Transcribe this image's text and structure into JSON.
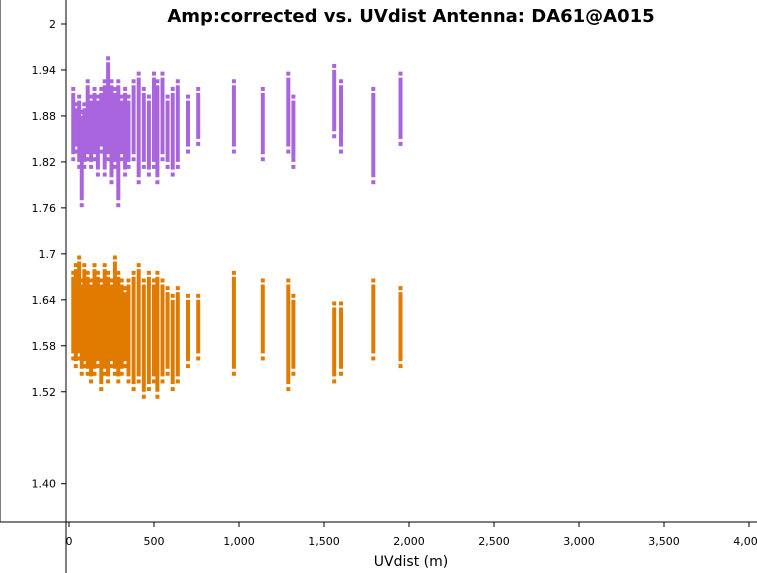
{
  "chart_data": {
    "type": "scatter",
    "title": "Amp:corrected vs. UVdist Antenna: DA61@A015",
    "xlabel": "UVdist (m)",
    "ylabel": "",
    "xlim": [
      0,
      4000
    ],
    "ylim": [
      1.35,
      2.03
    ],
    "x_ticks": [
      {
        "value": 0,
        "label": "0"
      },
      {
        "value": 500,
        "label": "500"
      },
      {
        "value": 1000,
        "label": "1,000"
      },
      {
        "value": 1500,
        "label": "1,500"
      },
      {
        "value": 2000,
        "label": "2,000"
      },
      {
        "value": 2500,
        "label": "2,500"
      },
      {
        "value": 3000,
        "label": "3,000"
      },
      {
        "value": 3500,
        "label": "3,500"
      },
      {
        "value": 4000,
        "label": "4,000"
      }
    ],
    "y_ticks": [
      {
        "value": 2.0,
        "label": "2"
      },
      {
        "value": 1.94,
        "label": "1.94"
      },
      {
        "value": 1.88,
        "label": "1.88"
      },
      {
        "value": 1.82,
        "label": "1.82"
      },
      {
        "value": 1.76,
        "label": "1.76"
      },
      {
        "value": 1.7,
        "label": "1.7"
      },
      {
        "value": 1.64,
        "label": "1.64"
      },
      {
        "value": 1.58,
        "label": "1.58"
      },
      {
        "value": 1.52,
        "label": "1.52"
      },
      {
        "value": 1.4,
        "label": "1.40"
      }
    ],
    "grid": false,
    "series": [
      {
        "color": "#a965dd",
        "points": [
          {
            "x": 25,
            "ymin": 1.83,
            "ymax": 1.91
          },
          {
            "x": 40,
            "ymin": 1.84,
            "ymax": 1.89
          },
          {
            "x": 60,
            "ymin": 1.82,
            "ymax": 1.9
          },
          {
            "x": 75,
            "ymin": 1.77,
            "ymax": 1.88
          },
          {
            "x": 90,
            "ymin": 1.82,
            "ymax": 1.89
          },
          {
            "x": 110,
            "ymin": 1.83,
            "ymax": 1.92
          },
          {
            "x": 130,
            "ymin": 1.82,
            "ymax": 1.9
          },
          {
            "x": 150,
            "ymin": 1.83,
            "ymax": 1.91
          },
          {
            "x": 170,
            "ymin": 1.81,
            "ymax": 1.9
          },
          {
            "x": 190,
            "ymin": 1.84,
            "ymax": 1.91
          },
          {
            "x": 210,
            "ymin": 1.81,
            "ymax": 1.92
          },
          {
            "x": 230,
            "ymin": 1.83,
            "ymax": 1.95
          },
          {
            "x": 250,
            "ymin": 1.8,
            "ymax": 1.92
          },
          {
            "x": 270,
            "ymin": 1.82,
            "ymax": 1.91
          },
          {
            "x": 290,
            "ymin": 1.77,
            "ymax": 1.92
          },
          {
            "x": 310,
            "ymin": 1.83,
            "ymax": 1.9
          },
          {
            "x": 330,
            "ymin": 1.81,
            "ymax": 1.91
          },
          {
            "x": 350,
            "ymin": 1.82,
            "ymax": 1.9
          },
          {
            "x": 380,
            "ymin": 1.83,
            "ymax": 1.92
          },
          {
            "x": 410,
            "ymin": 1.8,
            "ymax": 1.93
          },
          {
            "x": 440,
            "ymin": 1.82,
            "ymax": 1.91
          },
          {
            "x": 470,
            "ymin": 1.81,
            "ymax": 1.9
          },
          {
            "x": 500,
            "ymin": 1.82,
            "ymax": 1.93
          },
          {
            "x": 520,
            "ymin": 1.8,
            "ymax": 1.92
          },
          {
            "x": 550,
            "ymin": 1.83,
            "ymax": 1.93
          },
          {
            "x": 580,
            "ymin": 1.82,
            "ymax": 1.9
          },
          {
            "x": 610,
            "ymin": 1.81,
            "ymax": 1.91
          },
          {
            "x": 640,
            "ymin": 1.82,
            "ymax": 1.92
          },
          {
            "x": 700,
            "ymin": 1.84,
            "ymax": 1.9
          },
          {
            "x": 760,
            "ymin": 1.85,
            "ymax": 1.91
          },
          {
            "x": 970,
            "ymin": 1.84,
            "ymax": 1.92
          },
          {
            "x": 1140,
            "ymin": 1.83,
            "ymax": 1.91
          },
          {
            "x": 1290,
            "ymin": 1.84,
            "ymax": 1.93
          },
          {
            "x": 1320,
            "ymin": 1.82,
            "ymax": 1.9
          },
          {
            "x": 1560,
            "ymin": 1.86,
            "ymax": 1.94
          },
          {
            "x": 1600,
            "ymin": 1.84,
            "ymax": 1.92
          },
          {
            "x": 1790,
            "ymin": 1.8,
            "ymax": 1.91
          },
          {
            "x": 1950,
            "ymin": 1.85,
            "ymax": 1.93
          }
        ]
      },
      {
        "color": "#e07b00",
        "points": [
          {
            "x": 25,
            "ymin": 1.57,
            "ymax": 1.67
          },
          {
            "x": 40,
            "ymin": 1.56,
            "ymax": 1.68
          },
          {
            "x": 60,
            "ymin": 1.57,
            "ymax": 1.69
          },
          {
            "x": 75,
            "ymin": 1.55,
            "ymax": 1.66
          },
          {
            "x": 90,
            "ymin": 1.56,
            "ymax": 1.68
          },
          {
            "x": 110,
            "ymin": 1.55,
            "ymax": 1.67
          },
          {
            "x": 130,
            "ymin": 1.54,
            "ymax": 1.66
          },
          {
            "x": 150,
            "ymin": 1.55,
            "ymax": 1.68
          },
          {
            "x": 170,
            "ymin": 1.56,
            "ymax": 1.67
          },
          {
            "x": 190,
            "ymin": 1.53,
            "ymax": 1.66
          },
          {
            "x": 210,
            "ymin": 1.55,
            "ymax": 1.68
          },
          {
            "x": 230,
            "ymin": 1.54,
            "ymax": 1.67
          },
          {
            "x": 250,
            "ymin": 1.56,
            "ymax": 1.66
          },
          {
            "x": 270,
            "ymin": 1.55,
            "ymax": 1.69
          },
          {
            "x": 290,
            "ymin": 1.54,
            "ymax": 1.67
          },
          {
            "x": 310,
            "ymin": 1.55,
            "ymax": 1.66
          },
          {
            "x": 330,
            "ymin": 1.56,
            "ymax": 1.65
          },
          {
            "x": 350,
            "ymin": 1.54,
            "ymax": 1.66
          },
          {
            "x": 380,
            "ymin": 1.53,
            "ymax": 1.67
          },
          {
            "x": 410,
            "ymin": 1.54,
            "ymax": 1.68
          },
          {
            "x": 440,
            "ymin": 1.52,
            "ymax": 1.66
          },
          {
            "x": 470,
            "ymin": 1.53,
            "ymax": 1.67
          },
          {
            "x": 500,
            "ymin": 1.54,
            "ymax": 1.66
          },
          {
            "x": 520,
            "ymin": 1.52,
            "ymax": 1.67
          },
          {
            "x": 550,
            "ymin": 1.54,
            "ymax": 1.66
          },
          {
            "x": 580,
            "ymin": 1.55,
            "ymax": 1.65
          },
          {
            "x": 610,
            "ymin": 1.53,
            "ymax": 1.64
          },
          {
            "x": 640,
            "ymin": 1.54,
            "ymax": 1.65
          },
          {
            "x": 700,
            "ymin": 1.56,
            "ymax": 1.64
          },
          {
            "x": 760,
            "ymin": 1.57,
            "ymax": 1.64
          },
          {
            "x": 970,
            "ymin": 1.55,
            "ymax": 1.67
          },
          {
            "x": 1140,
            "ymin": 1.57,
            "ymax": 1.66
          },
          {
            "x": 1290,
            "ymin": 1.53,
            "ymax": 1.66
          },
          {
            "x": 1320,
            "ymin": 1.55,
            "ymax": 1.64
          },
          {
            "x": 1560,
            "ymin": 1.54,
            "ymax": 1.63
          },
          {
            "x": 1600,
            "ymin": 1.55,
            "ymax": 1.63
          },
          {
            "x": 1790,
            "ymin": 1.57,
            "ymax": 1.66
          },
          {
            "x": 1950,
            "ymin": 1.56,
            "ymax": 1.65
          }
        ]
      }
    ]
  }
}
